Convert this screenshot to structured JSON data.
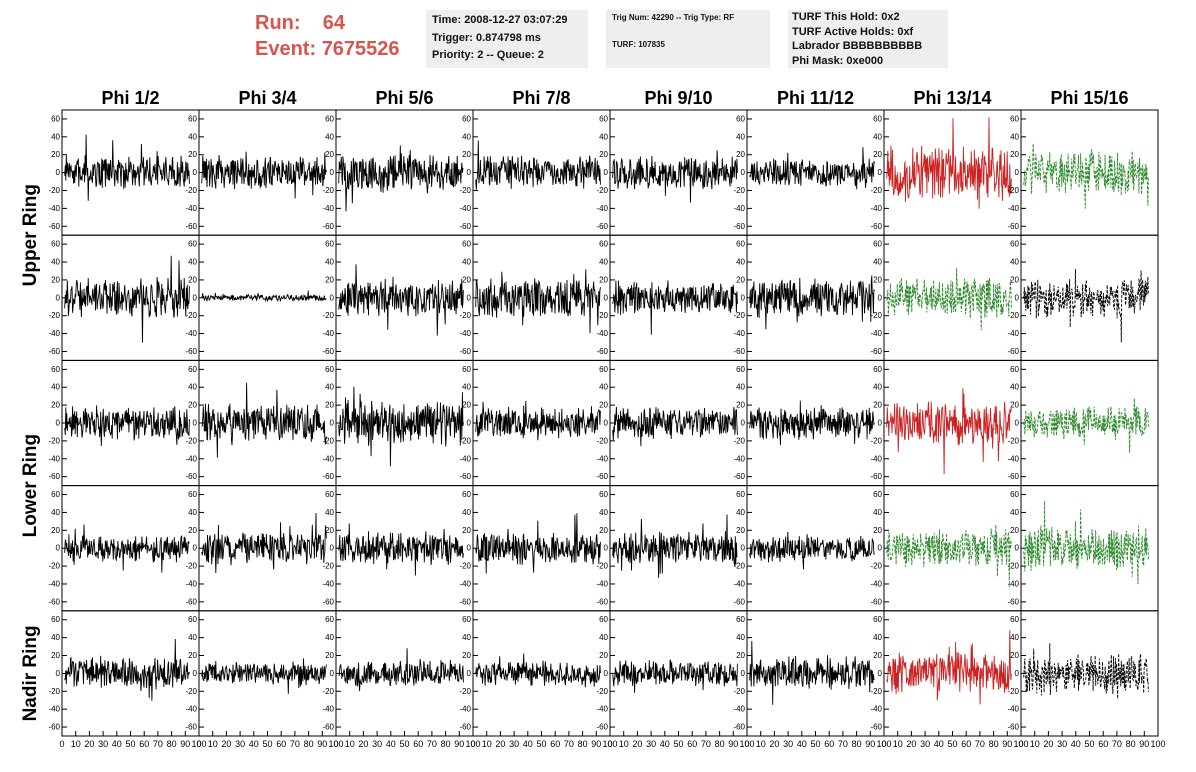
{
  "header": {
    "run_label": "Run:",
    "run_value": "64",
    "event_label": "Event:",
    "event_value": "7675526"
  },
  "info_box_1": {
    "time": "Time: 2008-12-27 03:07:29",
    "trigger": "Trigger: 0.874798 ms",
    "priority": "Priority: 2 -- Queue: 2"
  },
  "info_box_2": {
    "trig_line": "Trig Num: 42290 -- Trig Type: RF",
    "turf_line": "TURF: 107835"
  },
  "info_box_3": {
    "hold": "TURF This Hold: 0x2",
    "active": "TURF Active Holds: 0xf",
    "labrador": "Labrador BBBBBBBBBB",
    "phimask": "Phi Mask: 0xe000"
  },
  "chart_data": {
    "type": "line",
    "columns": [
      "Phi 1/2",
      "Phi 3/4",
      "Phi 5/6",
      "Phi 7/8",
      "Phi 9/10",
      "Phi 11/12",
      "Phi 13/14",
      "Phi 15/16"
    ],
    "row_groups": [
      "Upper Ring",
      "Lower Ring",
      "Nadir Ring"
    ],
    "panel_rows": 5,
    "row_group_spans": [
      [
        0,
        1
      ],
      [
        2,
        3
      ],
      [
        4,
        4
      ]
    ],
    "ylim": [
      -70,
      70
    ],
    "yticks": [
      -60,
      -40,
      -20,
      0,
      20,
      40,
      60
    ],
    "xlim": [
      0,
      100
    ],
    "xticks": [
      0,
      10,
      20,
      30,
      40,
      50,
      60,
      70,
      80,
      90,
      100
    ],
    "colors": {
      "solid": "#000000",
      "red": "#cc2222",
      "green": "#2a8a2a",
      "dashed": "#000000"
    },
    "panels": [
      [
        "solid",
        "solid",
        "solid",
        "solid",
        "solid",
        "solid",
        "red",
        "green-dashed"
      ],
      [
        "solid",
        "solid",
        "solid",
        "solid",
        "solid",
        "solid",
        "green-dashed",
        "black-dashed"
      ],
      [
        "solid",
        "solid",
        "solid",
        "solid",
        "solid",
        "solid",
        "red",
        "green-dashed"
      ],
      [
        "solid",
        "solid",
        "solid",
        "solid",
        "solid",
        "solid",
        "green-dashed",
        "green-dashed"
      ],
      [
        "solid",
        "solid",
        "solid",
        "solid",
        "solid",
        "solid",
        "red",
        "black-dashed"
      ]
    ],
    "amplitudes": [
      [
        15,
        15,
        18,
        15,
        15,
        12,
        25,
        20
      ],
      [
        18,
        3,
        18,
        18,
        15,
        18,
        18,
        18
      ],
      [
        15,
        18,
        20,
        15,
        15,
        15,
        20,
        15
      ],
      [
        12,
        15,
        15,
        15,
        15,
        12,
        18,
        20
      ],
      [
        15,
        10,
        12,
        12,
        12,
        15,
        18,
        18
      ]
    ]
  }
}
